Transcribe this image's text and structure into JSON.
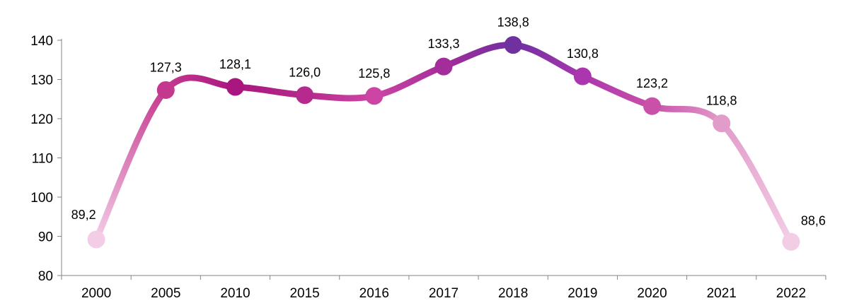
{
  "chart_data": {
    "type": "line",
    "title": "",
    "xlabel": "",
    "ylabel": "",
    "categories": [
      "2000",
      "2005",
      "2010",
      "2015",
      "2016",
      "2017",
      "2018",
      "2019",
      "2020",
      "2021",
      "2022"
    ],
    "values": [
      89.2,
      127.3,
      128.1,
      126.0,
      125.8,
      133.3,
      138.8,
      130.8,
      123.2,
      118.8,
      88.6
    ],
    "value_labels": [
      "89,2",
      "127,3",
      "128,1",
      "126,0",
      "125,8",
      "133,3",
      "138,8",
      "130,8",
      "123,2",
      "118,8",
      "88,6"
    ],
    "ylim": [
      80,
      140
    ],
    "y_ticks": [
      "80",
      "90",
      "100",
      "110",
      "120",
      "130",
      "140"
    ],
    "grid": false,
    "legend": "none",
    "point_colors": [
      "#f3cde6",
      "#c4398e",
      "#a9167f",
      "#b52a8c",
      "#cc45a4",
      "#a42d9a",
      "#7030a0",
      "#ab36ae",
      "#c951a8",
      "#e29cca",
      "#f3cde6"
    ]
  }
}
